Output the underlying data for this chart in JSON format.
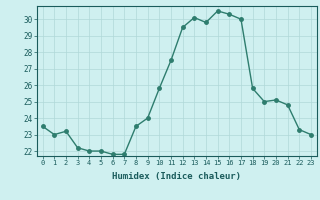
{
  "x": [
    0,
    1,
    2,
    3,
    4,
    5,
    6,
    7,
    8,
    9,
    10,
    11,
    12,
    13,
    14,
    15,
    16,
    17,
    18,
    19,
    20,
    21,
    22,
    23
  ],
  "y": [
    23.5,
    23.0,
    23.2,
    22.2,
    22.0,
    22.0,
    21.8,
    21.8,
    23.5,
    24.0,
    25.8,
    27.5,
    29.5,
    30.1,
    29.8,
    30.5,
    30.3,
    30.0,
    25.8,
    25.0,
    25.1,
    24.8,
    23.3,
    23.0
  ],
  "line_color": "#2e7d6e",
  "marker_color": "#2e7d6e",
  "bg_color": "#cff0f0",
  "grid_color": "#b0d8d8",
  "axis_label_color": "#1a5c5c",
  "tick_color": "#1a5c5c",
  "xlabel": "Humidex (Indice chaleur)",
  "ylim": [
    21.7,
    30.8
  ],
  "xlim": [
    -0.5,
    23.5
  ],
  "yticks": [
    22,
    23,
    24,
    25,
    26,
    27,
    28,
    29,
    30
  ],
  "xticks": [
    0,
    1,
    2,
    3,
    4,
    5,
    6,
    7,
    8,
    9,
    10,
    11,
    12,
    13,
    14,
    15,
    16,
    17,
    18,
    19,
    20,
    21,
    22,
    23
  ]
}
